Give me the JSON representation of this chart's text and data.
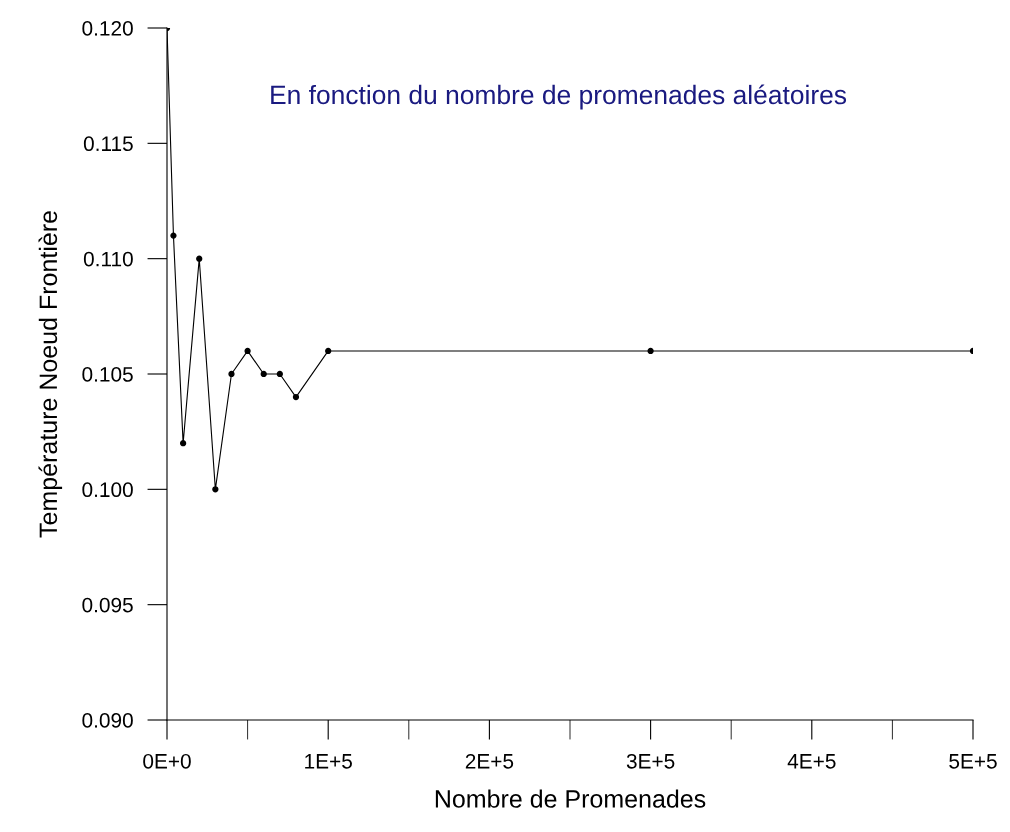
{
  "chart_data": {
    "type": "line",
    "subtitle": "En fonction du nombre de promenades aléatoires",
    "xlabel": "Nombre de Promenades",
    "ylabel": "Température Noeud Frontière",
    "x": [
      0,
      4000,
      10000,
      20000,
      30000,
      40000,
      50000,
      60000,
      70000,
      80000,
      100000,
      300000,
      500000
    ],
    "series": [
      {
        "color": "#000000",
        "values": [
          0.12,
          0.111,
          0.102,
          0.11,
          0.1,
          0.105,
          0.106,
          0.105,
          0.105,
          0.104,
          0.106,
          0.106,
          0.106
        ]
      }
    ],
    "marker": "circle",
    "line_style": "solid",
    "grid": false,
    "legend": false,
    "xlim": [
      0,
      500000
    ],
    "ylim": [
      0.09,
      0.12
    ],
    "xticks": [
      {
        "value": 0,
        "label": "0E+0"
      },
      {
        "value": 100000,
        "label": "1E+5"
      },
      {
        "value": 200000,
        "label": "2E+5"
      },
      {
        "value": 300000,
        "label": "3E+5"
      },
      {
        "value": 400000,
        "label": "4E+5"
      },
      {
        "value": 500000,
        "label": "5E+5"
      }
    ],
    "yticks": [
      {
        "value": 0.09,
        "label": "0.090"
      },
      {
        "value": 0.095,
        "label": "0.095"
      },
      {
        "value": 0.1,
        "label": "0.100"
      },
      {
        "value": 0.105,
        "label": "0.105"
      },
      {
        "value": 0.11,
        "label": "0.110"
      },
      {
        "value": 0.115,
        "label": "0.115"
      },
      {
        "value": 0.12,
        "label": "0.120"
      }
    ]
  }
}
